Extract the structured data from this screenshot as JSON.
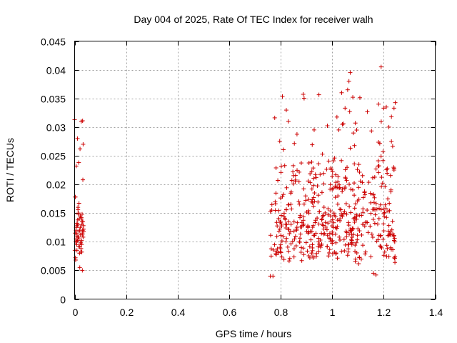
{
  "chart_data": {
    "type": "scatter",
    "title": "Day 004 of 2025, Rate Of TEC Index for receiver walh",
    "xlabel": "GPS time / hours",
    "ylabel": "ROTI / TECUs",
    "xlim": [
      0,
      1.4
    ],
    "ylim": [
      0,
      0.045
    ],
    "xticks": [
      "0",
      "0.2",
      "0.4",
      "0.6",
      "0.8",
      "1",
      "1.2",
      "1.4"
    ],
    "yticks": [
      "0",
      "0.005",
      "0.01",
      "0.015",
      "0.02",
      "0.025",
      "0.03",
      "0.035",
      "0.04",
      "0.045"
    ],
    "grid": true,
    "legend": "none",
    "marker": "plus",
    "color": "#cc0000",
    "series": [
      {
        "x": [
          0.0,
          0.003,
          0.005,
          0.008,
          0.01,
          0.012,
          0.015,
          0.017,
          0.02,
          0.022,
          0.025,
          0.027,
          0.03,
          0.032,
          0.035,
          0.002,
          0.006,
          0.011,
          0.016,
          0.021,
          0.026,
          0.031,
          0.004,
          0.009,
          0.014,
          0.019,
          0.024,
          0.029,
          0.034,
          0.001,
          0.007,
          0.013,
          0.018,
          0.023,
          0.028,
          0.033,
          0.003,
          0.01,
          0.016,
          0.022,
          0.027,
          0.032,
          0.005,
          0.012,
          0.018,
          0.025,
          0.03,
          0.035,
          0.008,
          0.015,
          0.02,
          0.028,
          0.033,
          0.002,
          0.024,
          0.009,
          0.017,
          0.011,
          0.026,
          0.031,
          0.004,
          0.013,
          0.006,
          0.019,
          0.03,
          0.023,
          0.029
        ],
        "y": [
          0.0313,
          0.0178,
          0.012,
          0.01,
          0.011,
          0.013,
          0.015,
          0.0105,
          0.0092,
          0.0125,
          0.014,
          0.0095,
          0.0112,
          0.0135,
          0.0118,
          0.0178,
          0.0232,
          0.028,
          0.0238,
          0.0262,
          0.031,
          0.0311,
          0.01,
          0.0085,
          0.0108,
          0.012,
          0.0098,
          0.0148,
          0.0128,
          0.0085,
          0.0115,
          0.016,
          0.014,
          0.0112,
          0.0082,
          0.027,
          0.0072,
          0.0128,
          0.0092,
          0.0145,
          0.0102,
          0.0208,
          0.0105,
          0.0138,
          0.0118,
          0.0088,
          0.005,
          0.0122,
          0.0095,
          0.0148,
          0.0055,
          0.013,
          0.0108,
          0.0115,
          0.0082,
          0.0132,
          0.0167,
          0.0102,
          0.0142,
          0.012,
          0.0068,
          0.0156,
          0.0125,
          0.008,
          0.0115,
          0.0098,
          0.0135
        ]
      }
    ]
  }
}
